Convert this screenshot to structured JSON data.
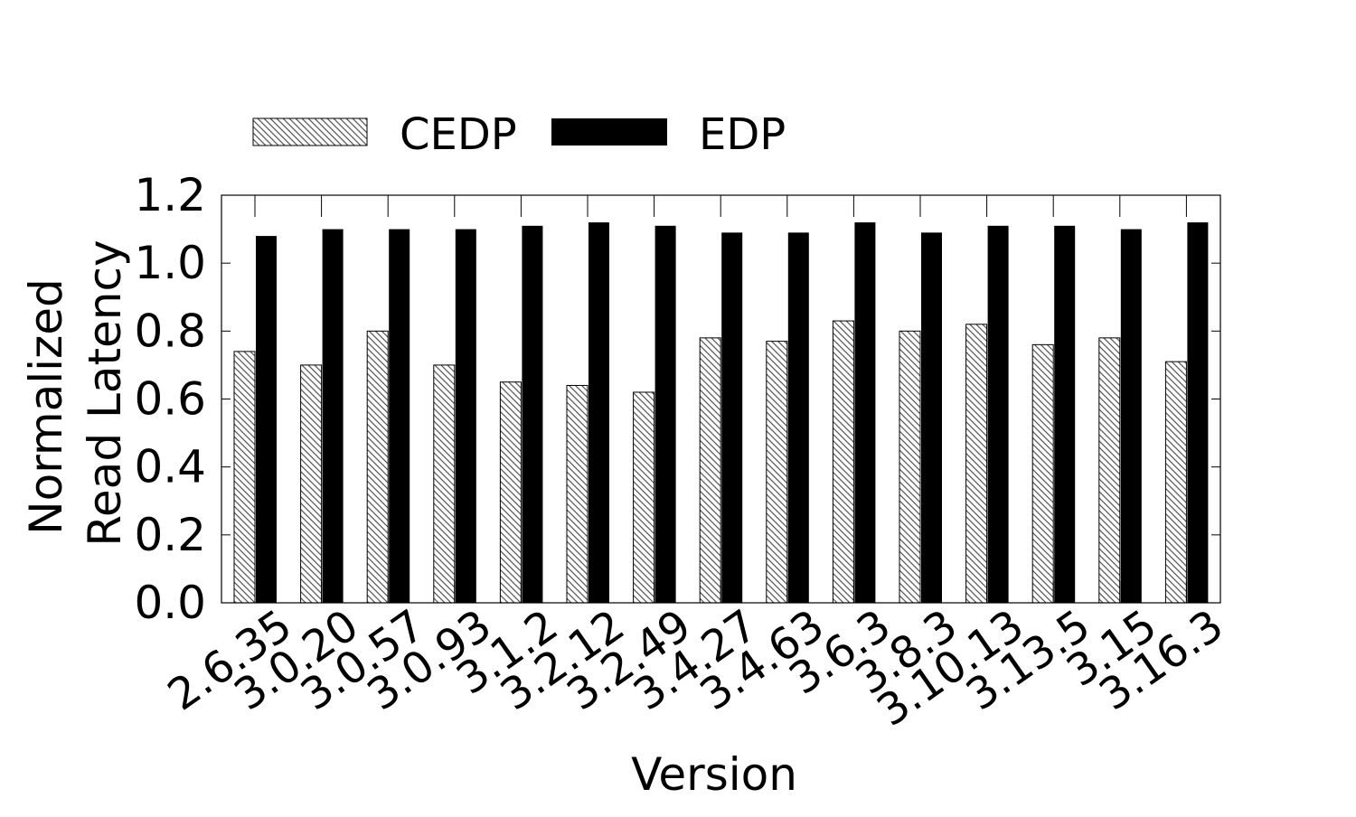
{
  "chart_data": {
    "type": "bar",
    "categories": [
      "2.6.35",
      "3.0.20",
      "3.0.57",
      "3.0.93",
      "3.1.2",
      "3.2.12",
      "3.2.49",
      "3.4.27",
      "3.4.63",
      "3.6.3",
      "3.8.3",
      "3.10.13",
      "3.13.5",
      "3.15",
      "3.16.3"
    ],
    "series": [
      {
        "name": "CEDP",
        "pattern": "hatch",
        "values": [
          0.74,
          0.7,
          0.8,
          0.7,
          0.65,
          0.64,
          0.62,
          0.78,
          0.77,
          0.83,
          0.8,
          0.82,
          0.76,
          0.78,
          0.71
        ]
      },
      {
        "name": "EDP",
        "pattern": "solid",
        "values": [
          1.08,
          1.1,
          1.1,
          1.1,
          1.11,
          1.12,
          1.11,
          1.09,
          1.09,
          1.12,
          1.09,
          1.11,
          1.11,
          1.1,
          1.12
        ]
      }
    ],
    "xlabel": "Version",
    "ylabel_lines": [
      "Normalized",
      "Read Latency"
    ],
    "ylim": [
      0,
      1.2
    ],
    "yticks": [
      "0.0",
      "0.2",
      "0.4",
      "0.6",
      "0.8",
      "1.0",
      "1.2"
    ],
    "grid": false,
    "legend_position": "top",
    "colors": {
      "edp": "#000000",
      "cedp_fill": "#ffffff",
      "cedp_hatch": "#555555",
      "axis": "#000000"
    }
  }
}
